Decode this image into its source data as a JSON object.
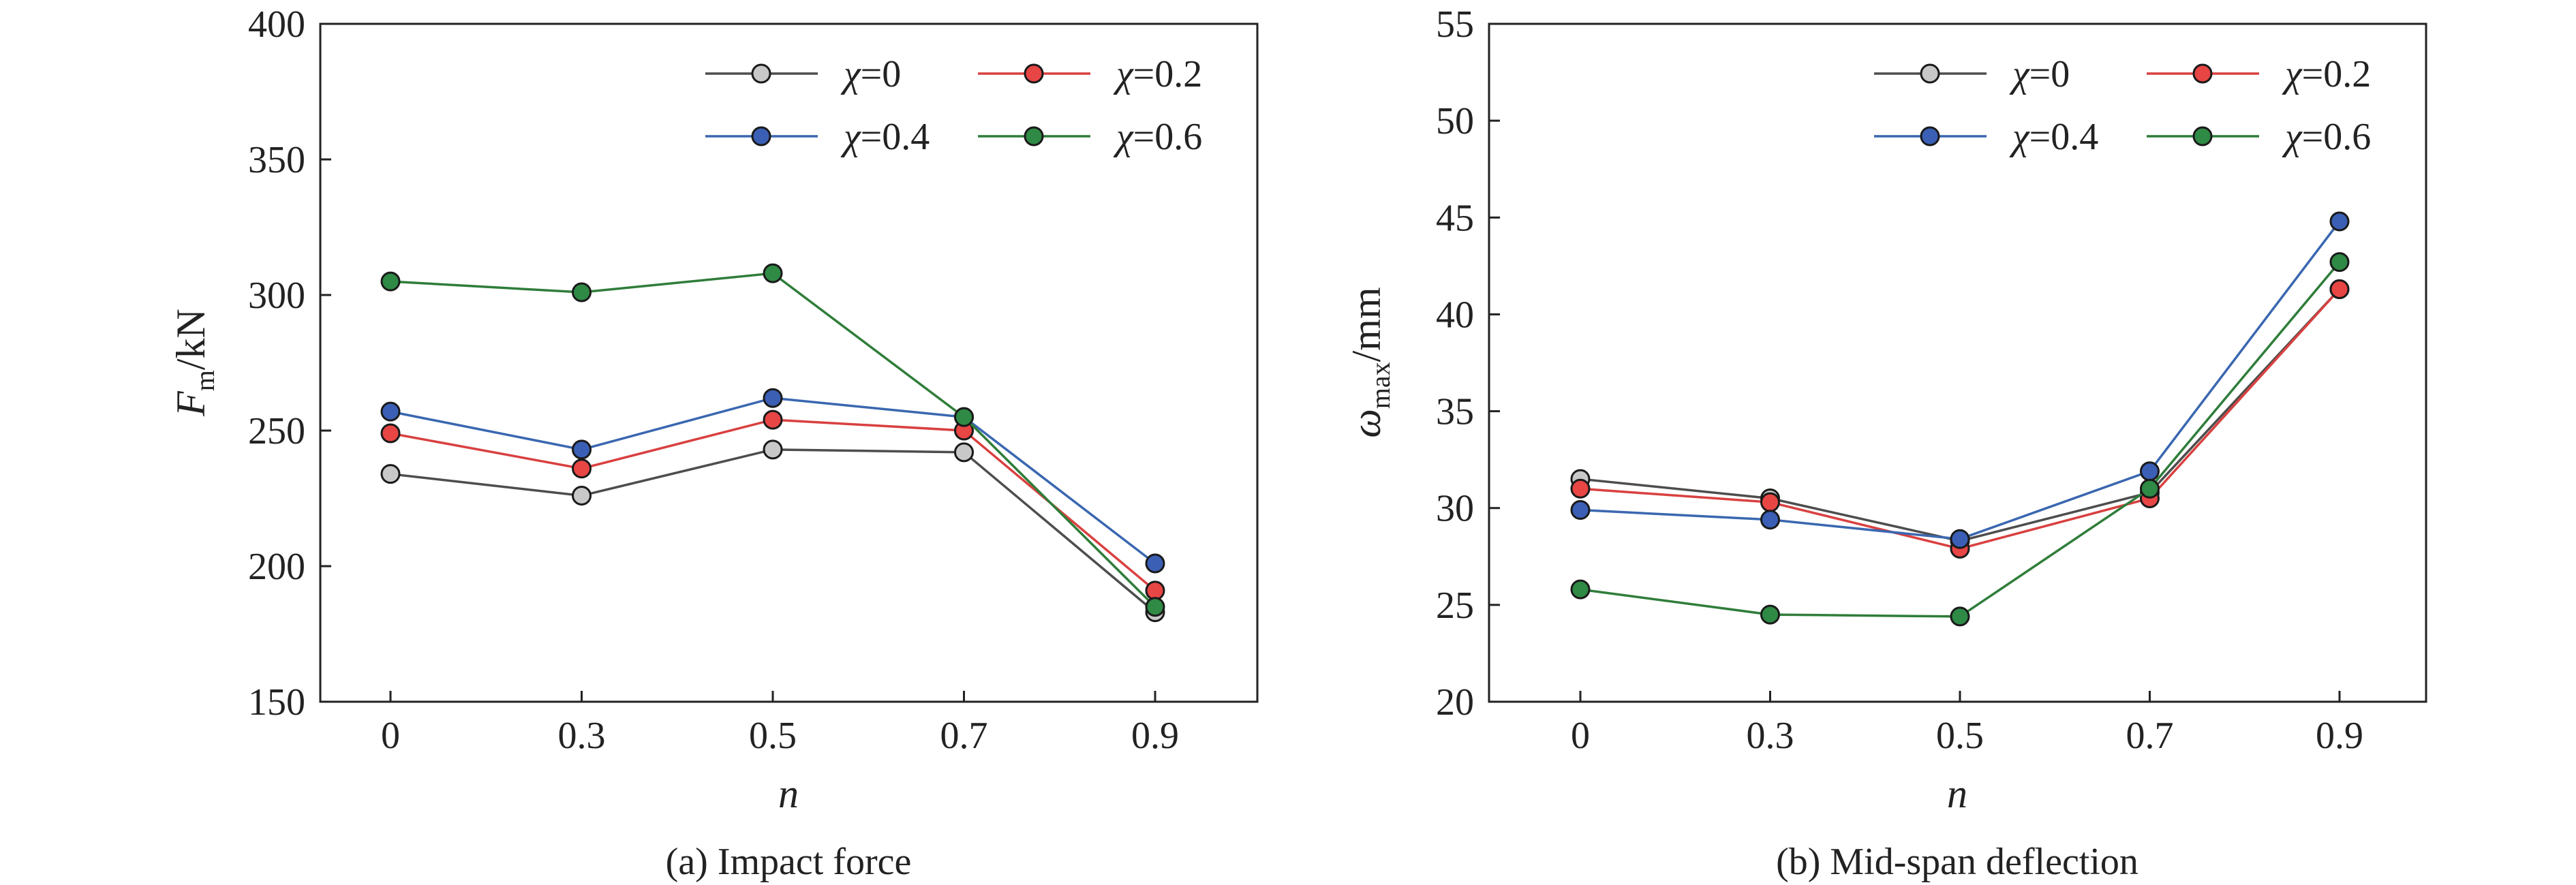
{
  "colors": {
    "chi_0": "#4d4d4d",
    "chi_0_marker": "#c8c8c8",
    "chi_0_2": "#d94040",
    "chi_0_2_marker": "#e84545",
    "chi_0_4": "#3a67b0",
    "chi_0_4_marker": "#3a5fb5",
    "chi_0_6": "#2f7d3a",
    "chi_0_6_marker": "#2e8a45"
  },
  "chart_data": [
    {
      "type": "line",
      "caption": "(a) Impact force",
      "xlabel": "n",
      "ylabel": {
        "main": "F",
        "sub": "m",
        "unit": "/kN"
      },
      "categories": [
        "0",
        "0.3",
        "0.5",
        "0.7",
        "0.9"
      ],
      "ylim": [
        150,
        400
      ],
      "yticks": [
        "150",
        "200",
        "250",
        "300",
        "350",
        "400"
      ],
      "grid": false,
      "legend_position": "top-right",
      "series": [
        {
          "name": "χ=0",
          "symbol": "χ",
          "value_label": "=0",
          "color_key": "chi_0",
          "values": [
            234,
            226,
            243,
            242,
            183
          ]
        },
        {
          "name": "χ=0.2",
          "symbol": "χ",
          "value_label": "=0.2",
          "color_key": "chi_0_2",
          "values": [
            249,
            236,
            254,
            250,
            191
          ]
        },
        {
          "name": "χ=0.4",
          "symbol": "χ",
          "value_label": "=0.4",
          "color_key": "chi_0_4",
          "values": [
            257,
            243,
            262,
            255,
            201
          ]
        },
        {
          "name": "χ=0.6",
          "symbol": "χ",
          "value_label": "=0.6",
          "color_key": "chi_0_6",
          "values": [
            305,
            301,
            308,
            255,
            185
          ]
        }
      ]
    },
    {
      "type": "line",
      "caption": "(b) Mid-span deflection",
      "xlabel": "n",
      "ylabel": {
        "main": "ω",
        "sub": "max",
        "unit": "/mm"
      },
      "categories": [
        "0",
        "0.3",
        "0.5",
        "0.7",
        "0.9"
      ],
      "ylim": [
        20,
        55
      ],
      "yticks": [
        "20",
        "25",
        "30",
        "35",
        "40",
        "45",
        "50",
        "55"
      ],
      "grid": false,
      "legend_position": "top-right",
      "series": [
        {
          "name": "χ=0",
          "symbol": "χ",
          "value_label": "=0",
          "color_key": "chi_0",
          "values": [
            31.5,
            30.5,
            28.3,
            30.8,
            41.3
          ]
        },
        {
          "name": "χ=0.2",
          "symbol": "χ",
          "value_label": "=0.2",
          "color_key": "chi_0_2",
          "values": [
            31.0,
            30.3,
            27.9,
            30.5,
            41.3
          ]
        },
        {
          "name": "χ=0.4",
          "symbol": "χ",
          "value_label": "=0.4",
          "color_key": "chi_0_4",
          "values": [
            29.9,
            29.4,
            28.4,
            31.9,
            44.8
          ]
        },
        {
          "name": "χ=0.6",
          "symbol": "χ",
          "value_label": "=0.6",
          "color_key": "chi_0_6",
          "values": [
            25.8,
            24.5,
            24.4,
            31.0,
            42.7
          ]
        }
      ]
    }
  ]
}
